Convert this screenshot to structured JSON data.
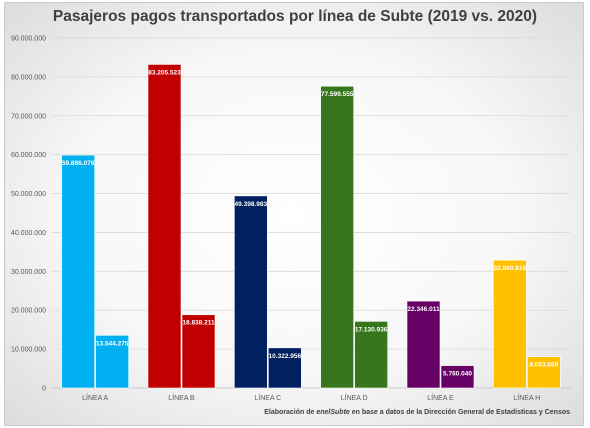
{
  "chart_data": {
    "type": "bar",
    "title": "Pasajeros pagos transportados por línea de Subte (2019 vs. 2020)",
    "categories": [
      "LÍNEA A",
      "LÍNEA B",
      "LÍNEA C",
      "LÍNEA D",
      "LÍNEA E",
      "LÍNEA H"
    ],
    "series": [
      {
        "values": [
          59886076,
          83205523,
          49398983,
          77599555,
          22346011,
          32860816
        ],
        "labels": [
          "59.886.076",
          "83.205.523",
          "49.398.983",
          "77.599.555",
          "22.346.011",
          "32.860.816"
        ]
      },
      {
        "values": [
          13544275,
          18838211,
          10322956,
          17130936,
          5760040,
          8053659
        ],
        "labels": [
          "13.544.275",
          "18.838.211",
          "10.322.956",
          "17.130.936",
          "5.760.040",
          "8.053.659"
        ]
      }
    ],
    "colors": [
      "#00B0F0",
      "#C00000",
      "#002060",
      "#38761D",
      "#660066",
      "#FFC000"
    ],
    "ylim": [
      0,
      90000000
    ],
    "yticks": [
      0,
      10000000,
      20000000,
      30000000,
      40000000,
      50000000,
      60000000,
      70000000,
      80000000,
      90000000
    ],
    "ytick_labels": [
      "0",
      "10.000.000",
      "20.000.000",
      "30.000.000",
      "40.000.000",
      "50.000.000",
      "60.000.000",
      "70.000.000",
      "80.000.000",
      "90.000.000"
    ],
    "grid": true,
    "xlabel": "",
    "ylabel": ""
  },
  "note": {
    "prefix": "Elaboración de ",
    "brand": "enelSubte",
    "suffix": " en base a datos de la Dirección General de Estadísticas y Censos"
  }
}
